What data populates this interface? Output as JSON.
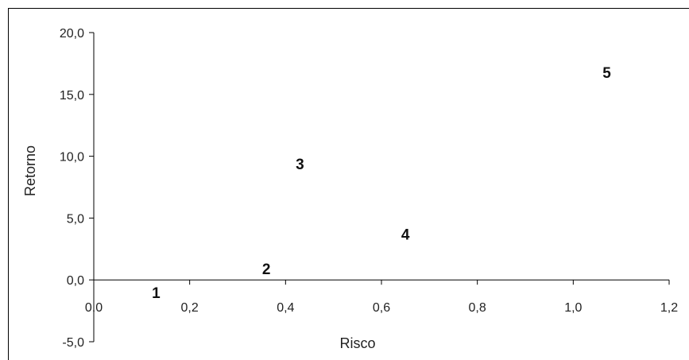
{
  "chart_data": {
    "type": "scatter",
    "title": "",
    "xlabel": "Risco",
    "ylabel": "Retorno",
    "xlim": [
      0.0,
      1.2
    ],
    "ylim": [
      -5.0,
      20.0
    ],
    "x_ticks": [
      "0,0",
      "0,2",
      "0,4",
      "0,6",
      "0,8",
      "1,0",
      "1,2"
    ],
    "y_ticks": [
      "-5,0",
      "0,0",
      "5,0",
      "10,0",
      "15,0",
      "20,0"
    ],
    "grid": false,
    "legend": "none",
    "points": [
      {
        "label": "1",
        "x": 0.13,
        "y": -1.0
      },
      {
        "label": "2",
        "x": 0.36,
        "y": 0.9
      },
      {
        "label": "3",
        "x": 0.43,
        "y": 9.4
      },
      {
        "label": "4",
        "x": 0.65,
        "y": 3.7
      },
      {
        "label": "5",
        "x": 1.07,
        "y": 16.8
      }
    ]
  }
}
